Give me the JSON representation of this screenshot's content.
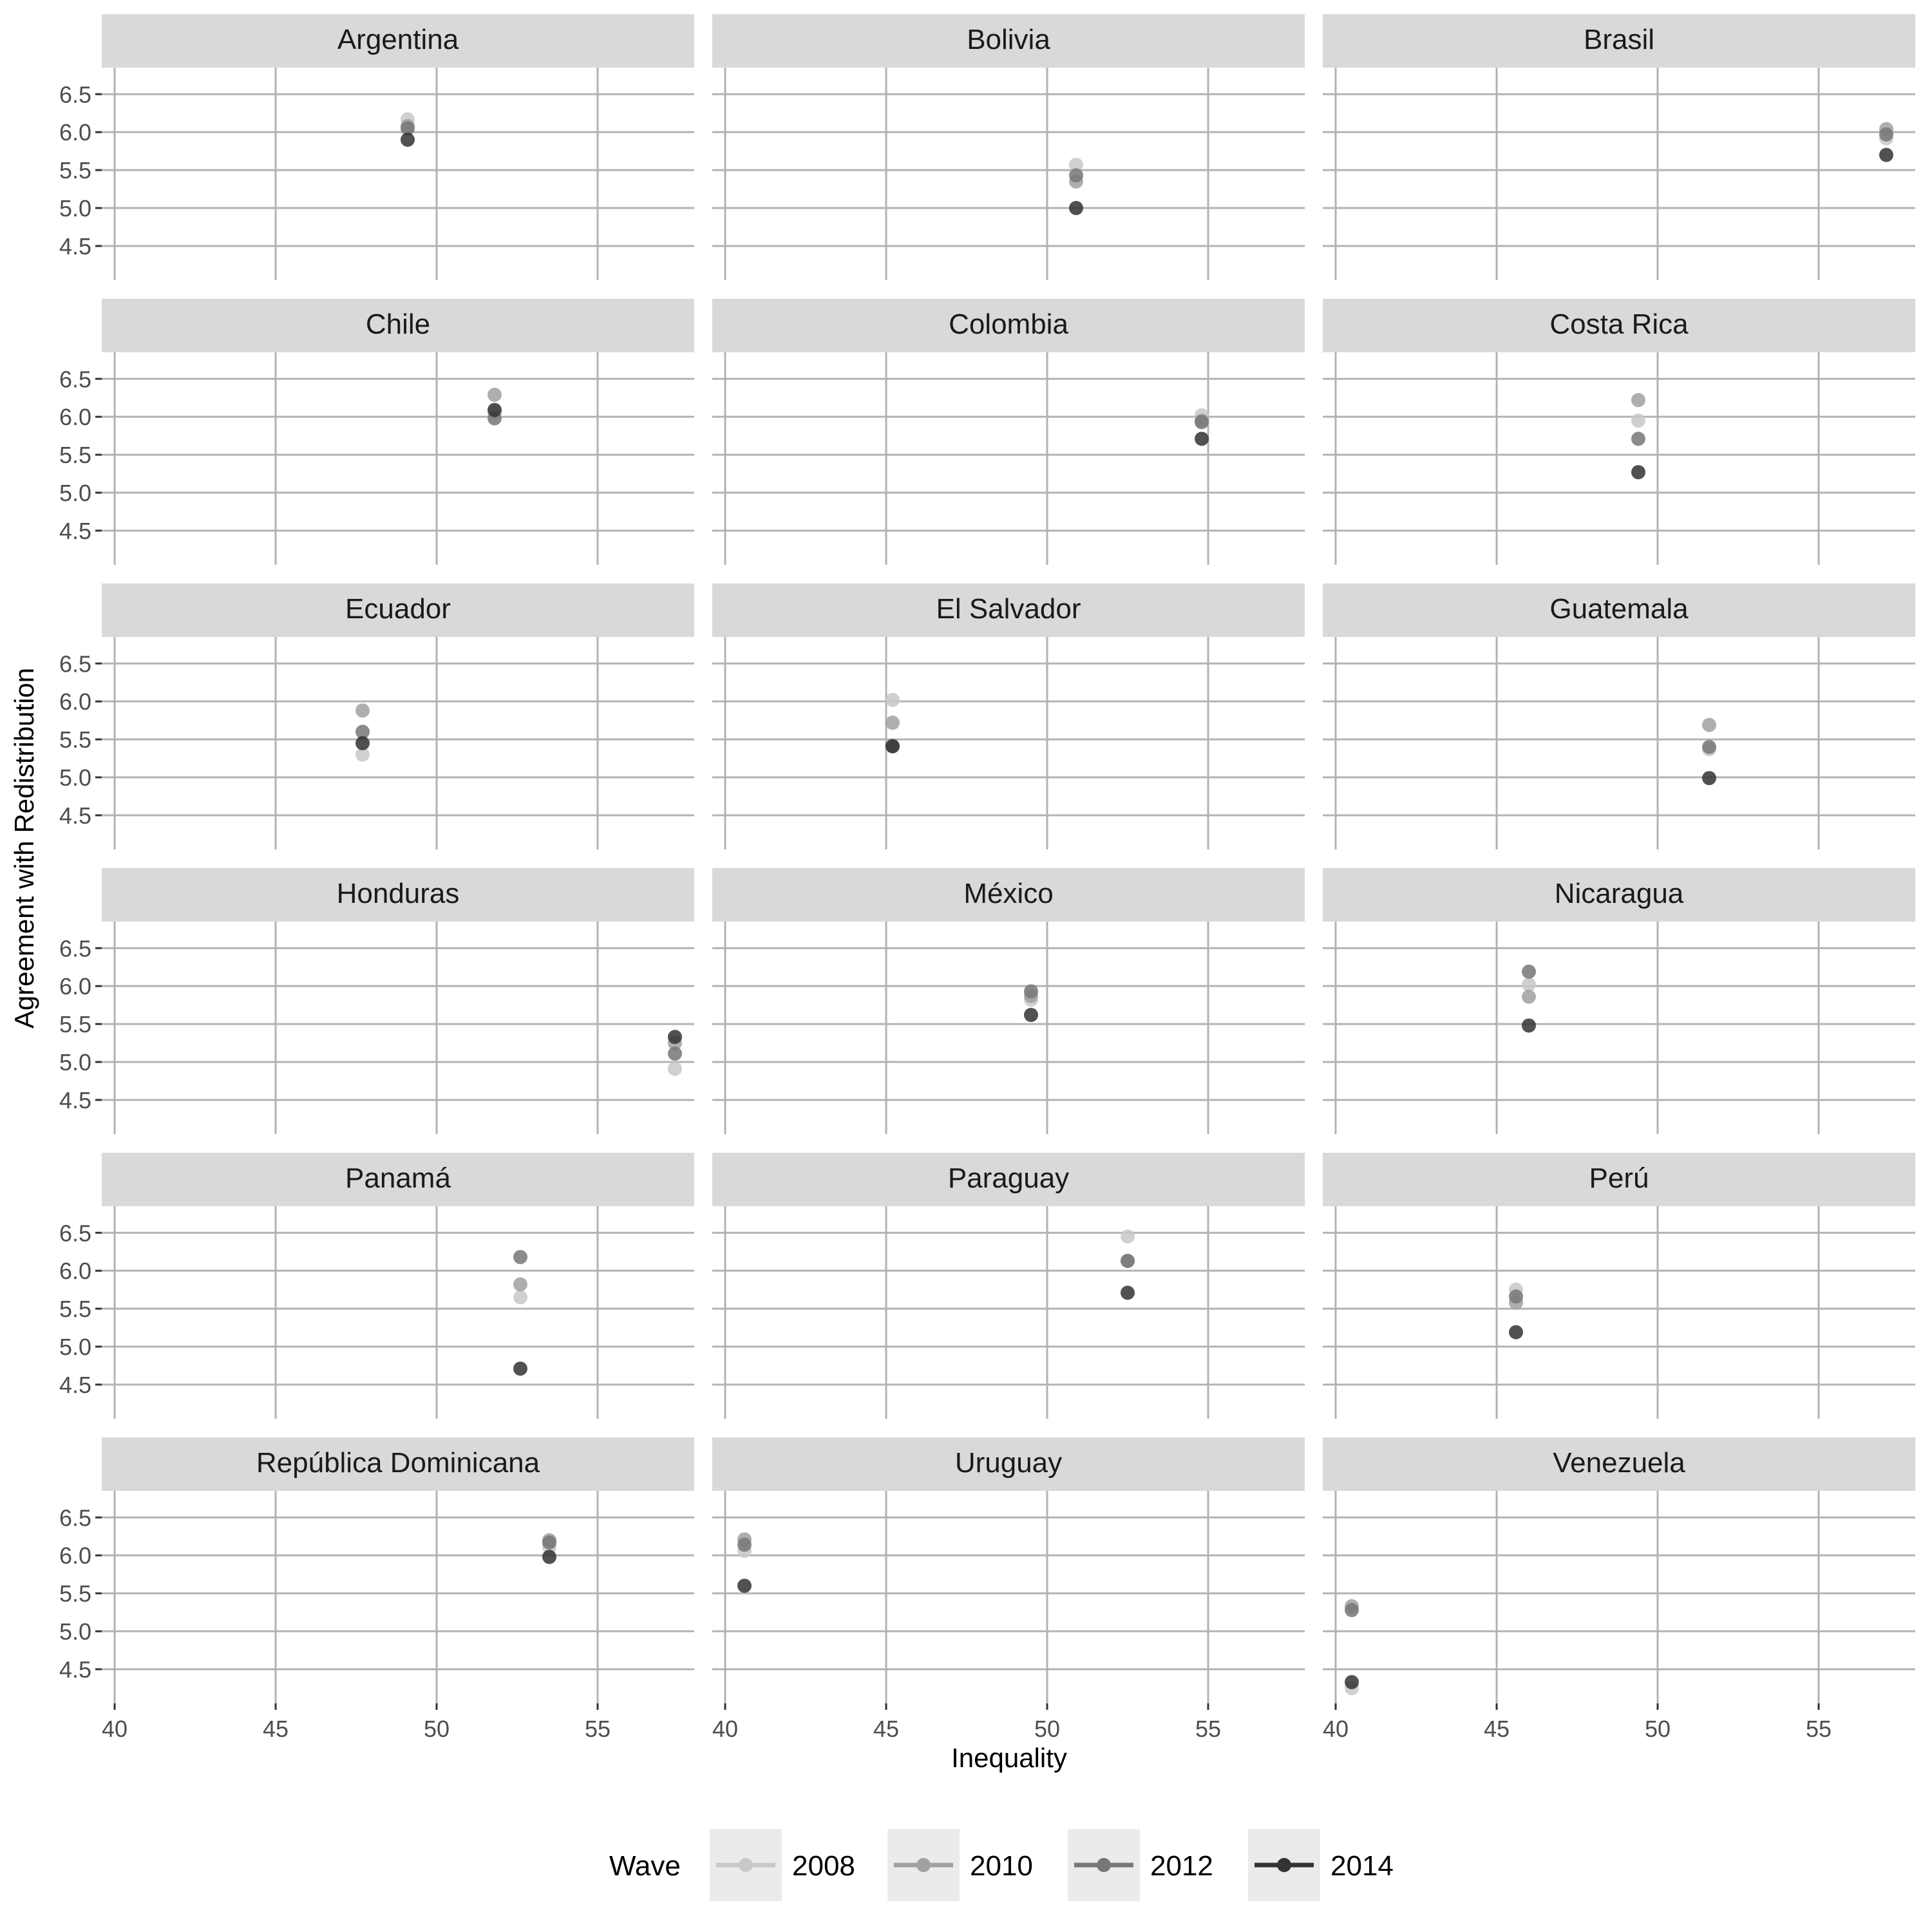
{
  "chart_data": {
    "type": "scatter",
    "xlabel": "Inequality",
    "ylabel": "Agreement with Redistribution",
    "xlim": [
      39.6,
      58.0
    ],
    "ylim": [
      4.05,
      6.85
    ],
    "x_ticks": [
      40,
      45,
      50,
      55
    ],
    "y_ticks": [
      4.5,
      5.0,
      5.5,
      6.0,
      6.5
    ],
    "x_tick_labels": [
      "40",
      "45",
      "50",
      "55"
    ],
    "y_tick_labels": [
      "4.5",
      "5.0",
      "5.5",
      "6.0",
      "6.5"
    ],
    "grid": true,
    "legend": {
      "title": "Wave",
      "position": "bottom",
      "items": [
        {
          "label": "2008",
          "color": "#c8c8c8"
        },
        {
          "label": "2010",
          "color": "#a0a0a0"
        },
        {
          "label": "2012",
          "color": "#777777"
        },
        {
          "label": "2014",
          "color": "#333333"
        }
      ]
    },
    "panels": [
      {
        "title": "Argentina",
        "x": 49.1,
        "values": {
          "2008": 6.17,
          "2010": 6.08,
          "2012": 6.05,
          "2014": 5.9
        }
      },
      {
        "title": "Bolivia",
        "x": 50.9,
        "values": {
          "2008": 5.57,
          "2010": 5.35,
          "2012": 5.43,
          "2014": 5.0
        }
      },
      {
        "title": "Brasil",
        "x": 57.1,
        "values": {
          "2008": 5.92,
          "2010": 6.04,
          "2012": 5.97,
          "2014": 5.7
        }
      },
      {
        "title": "Chile",
        "x": 51.8,
        "values": {
          "2008": 6.05,
          "2010": 6.29,
          "2012": 5.98,
          "2014": 6.09
        }
      },
      {
        "title": "Colombia",
        "x": 54.8,
        "values": {
          "2008": 6.02,
          "2010": 5.95,
          "2012": 5.93,
          "2014": 5.71
        }
      },
      {
        "title": "Costa Rica",
        "x": 49.4,
        "values": {
          "2008": 5.95,
          "2010": 6.22,
          "2012": 5.71,
          "2014": 5.27
        }
      },
      {
        "title": "Ecuador",
        "x": 47.7,
        "values": {
          "2008": 5.3,
          "2010": 5.88,
          "2012": 5.6,
          "2014": 5.45
        }
      },
      {
        "title": "El Salvador",
        "x": 45.2,
        "values": {
          "2008": 6.02,
          "2010": 5.72,
          "2012": 5.41,
          "2014": 5.41
        }
      },
      {
        "title": "Guatemala",
        "x": 51.6,
        "values": {
          "2008": 5.37,
          "2010": 5.69,
          "2012": 5.4,
          "2014": 4.99
        }
      },
      {
        "title": "Honduras",
        "x": 57.4,
        "values": {
          "2008": 4.91,
          "2010": 5.25,
          "2012": 5.11,
          "2014": 5.33
        }
      },
      {
        "title": "México",
        "x": 49.5,
        "values": {
          "2008": 5.82,
          "2010": 5.87,
          "2012": 5.93,
          "2014": 5.62
        }
      },
      {
        "title": "Nicaragua",
        "x": 46.0,
        "values": {
          "2008": 6.02,
          "2010": 5.86,
          "2012": 6.19,
          "2014": 5.48
        }
      },
      {
        "title": "Panamá",
        "x": 52.6,
        "values": {
          "2008": 5.65,
          "2010": 5.82,
          "2012": 6.18,
          "2014": 4.71
        }
      },
      {
        "title": "Paraguay",
        "x": 52.5,
        "values": {
          "2008": 6.45,
          "2010": 6.13,
          "2012": 6.13,
          "2014": 5.71
        }
      },
      {
        "title": "Perú",
        "x": 45.6,
        "values": {
          "2008": 5.75,
          "2010": 5.58,
          "2012": 5.66,
          "2014": 5.19
        }
      },
      {
        "title": "República Dominicana",
        "x": 53.5,
        "values": {
          "2008": 6.11,
          "2010": 6.2,
          "2012": 6.17,
          "2014": 5.98
        }
      },
      {
        "title": "Uruguay",
        "x": 40.6,
        "values": {
          "2008": 6.06,
          "2010": 6.21,
          "2012": 6.14,
          "2014": 5.6
        }
      },
      {
        "title": "Venezuela",
        "x": 40.5,
        "values": {
          "2008": 4.25,
          "2010": 5.33,
          "2012": 5.28,
          "2014": 4.33
        }
      }
    ]
  }
}
